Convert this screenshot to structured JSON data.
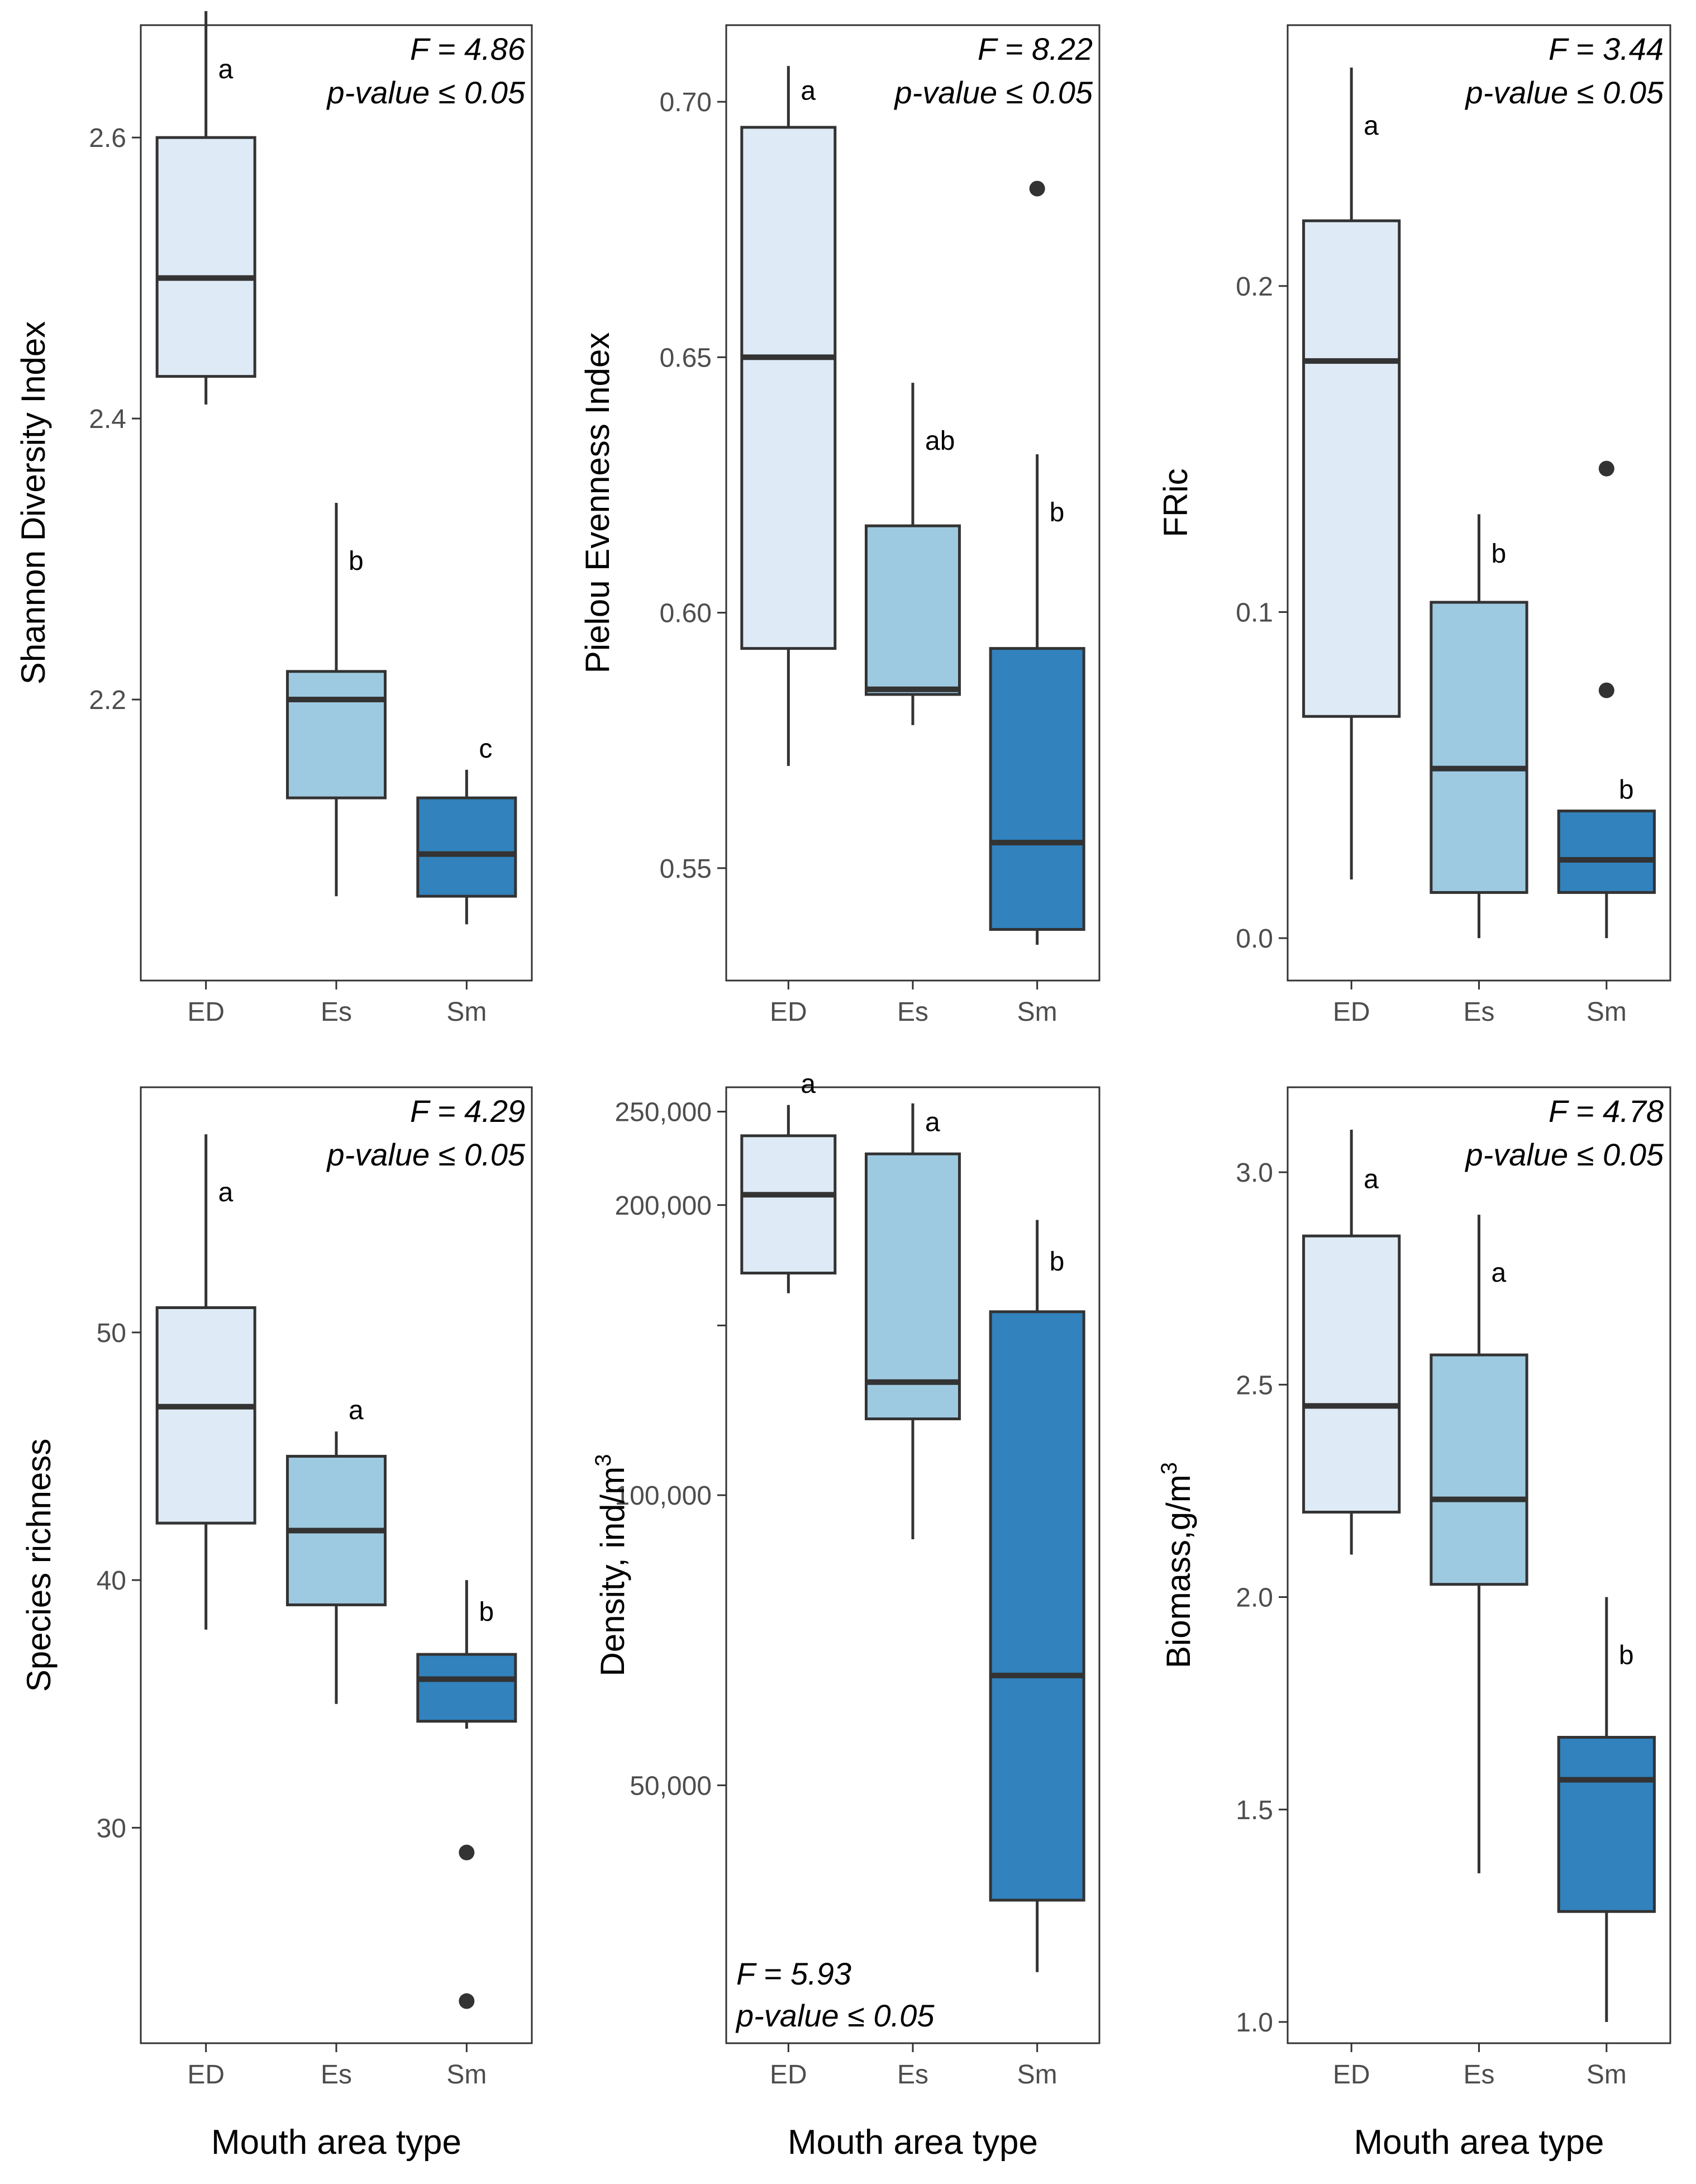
{
  "chart_data": [
    {
      "type": "box",
      "id": "shannon",
      "ylabel": "Shannon Diversity Index",
      "ylim": [
        2.0,
        2.68
      ],
      "yticks": [
        2.2,
        2.4,
        2.6
      ],
      "ytick_labels": [
        "2.2",
        "2.4",
        "2.6"
      ],
      "categories": [
        "ED",
        "Es",
        "Sm"
      ],
      "boxes": [
        {
          "min": 2.41,
          "q1": 2.43,
          "median": 2.5,
          "q3": 2.6,
          "max": 2.69,
          "outliers": [],
          "letter": "a"
        },
        {
          "min": 2.06,
          "q1": 2.13,
          "median": 2.2,
          "q3": 2.22,
          "max": 2.34,
          "outliers": [],
          "letter": "b"
        },
        {
          "min": 2.04,
          "q1": 2.06,
          "median": 2.09,
          "q3": 2.13,
          "max": 2.15,
          "outliers": [],
          "letter": "c"
        }
      ],
      "stat_f": "F = 4.86",
      "stat_p": "p-value ≤ 0.05",
      "stat_position": "top-right"
    },
    {
      "type": "box",
      "id": "pielou",
      "ylabel": "Pielou Evenness Index",
      "ylim": [
        0.528,
        0.715
      ],
      "yticks": [
        0.55,
        0.6,
        0.65,
        0.7
      ],
      "ytick_labels": [
        "0.55",
        "0.60",
        "0.65",
        "0.70"
      ],
      "categories": [
        "ED",
        "Es",
        "Sm"
      ],
      "boxes": [
        {
          "min": 0.57,
          "q1": 0.593,
          "median": 0.65,
          "q3": 0.695,
          "max": 0.707,
          "outliers": [],
          "letter": "a"
        },
        {
          "min": 0.578,
          "q1": 0.584,
          "median": 0.585,
          "q3": 0.617,
          "max": 0.645,
          "outliers": [],
          "letter": "ab"
        },
        {
          "min": 0.535,
          "q1": 0.538,
          "median": 0.555,
          "q3": 0.593,
          "max": 0.631,
          "outliers": [
            0.683
          ],
          "letter": "b"
        }
      ],
      "stat_f": "F = 8.22",
      "stat_p": "p-value ≤ 0.05",
      "stat_position": "top-right"
    },
    {
      "type": "box",
      "id": "fric",
      "ylabel": "FRic",
      "ylim": [
        -0.013,
        0.28
      ],
      "yticks": [
        0.0,
        0.1,
        0.2
      ],
      "ytick_labels": [
        "0.0",
        "0.1",
        "0.2"
      ],
      "categories": [
        "ED",
        "Es",
        "Sm"
      ],
      "boxes": [
        {
          "min": 0.018,
          "q1": 0.068,
          "median": 0.177,
          "q3": 0.22,
          "max": 0.267,
          "outliers": [],
          "letter": "a"
        },
        {
          "min": 0.0,
          "q1": 0.014,
          "median": 0.052,
          "q3": 0.103,
          "max": 0.13,
          "outliers": [],
          "letter": "b"
        },
        {
          "min": 0.0,
          "q1": 0.014,
          "median": 0.024,
          "q3": 0.039,
          "max": 0.039,
          "outliers": [
            0.076,
            0.144
          ],
          "letter": "b"
        }
      ],
      "stat_f": "F = 3.44",
      "stat_p": "p-value ≤ 0.05",
      "stat_position": "top-right"
    },
    {
      "type": "box",
      "id": "richness",
      "ylabel": "Species richness",
      "ylim": [
        21.3,
        59.9
      ],
      "yticks": [
        30,
        40,
        50
      ],
      "ytick_labels": [
        "30",
        "40",
        "50"
      ],
      "categories": [
        "ED",
        "Es",
        "Sm"
      ],
      "boxes": [
        {
          "min": 38,
          "q1": 42.3,
          "median": 47,
          "q3": 51,
          "max": 58,
          "outliers": [],
          "letter": "a"
        },
        {
          "min": 35,
          "q1": 39,
          "median": 42,
          "q3": 45,
          "max": 46,
          "outliers": [],
          "letter": "a"
        },
        {
          "min": 34,
          "q1": 34.3,
          "median": 36,
          "q3": 37,
          "max": 40,
          "outliers": [
            29,
            23
          ],
          "letter": "b"
        }
      ],
      "stat_f": "F = 4.29",
      "stat_p": "p-value ≤ 0.05",
      "stat_position": "top-right"
    },
    {
      "type": "box",
      "id": "density",
      "ylabel_main": "Density, ind/m",
      "ylabel_sup": "3",
      "scale": "log10",
      "ylim": [
        27000,
        265000
      ],
      "yticks": [
        50000,
        100000,
        150000,
        200000,
        250000
      ],
      "ytick_labels": [
        "50,000",
        "100,000",
        "",
        "200,000",
        "250,000"
      ],
      "categories": [
        "ED",
        "Es",
        "Sm"
      ],
      "boxes": [
        {
          "min": 162000,
          "q1": 170000,
          "median": 205000,
          "q3": 236000,
          "max": 254000,
          "outliers": [],
          "letter": "a"
        },
        {
          "min": 90000,
          "q1": 120000,
          "median": 131000,
          "q3": 226000,
          "max": 255000,
          "outliers": [],
          "letter": "a"
        },
        {
          "min": 32000,
          "q1": 38000,
          "median": 65000,
          "q3": 155000,
          "max": 193000,
          "outliers": [],
          "letter": "b"
        }
      ],
      "stat_f": "F = 5.93",
      "stat_p": "p-value ≤ 0.05",
      "stat_position": "bottom-left"
    },
    {
      "type": "box",
      "id": "biomass",
      "ylabel_main": "Biomass,g/m",
      "ylabel_sup": "3",
      "ylim": [
        0.95,
        3.2
      ],
      "yticks": [
        1.0,
        1.5,
        2.0,
        2.5,
        3.0
      ],
      "ytick_labels": [
        "1.0",
        "1.5",
        "2.0",
        "2.5",
        "3.0"
      ],
      "categories": [
        "ED",
        "Es",
        "Sm"
      ],
      "boxes": [
        {
          "min": 2.1,
          "q1": 2.2,
          "median": 2.45,
          "q3": 2.85,
          "max": 3.1,
          "outliers": [],
          "letter": "a"
        },
        {
          "min": 1.35,
          "q1": 2.03,
          "median": 2.23,
          "q3": 2.57,
          "max": 2.9,
          "outliers": [],
          "letter": "a"
        },
        {
          "min": 1.0,
          "q1": 1.26,
          "median": 1.57,
          "q3": 1.67,
          "max": 2.0,
          "outliers": [],
          "letter": "b"
        }
      ],
      "stat_f": "F = 4.78",
      "stat_p": "p-value ≤ 0.05",
      "stat_position": "top-right"
    }
  ],
  "xlabel": "Mouth area type",
  "colors": {
    "fill_1": "#deebf7",
    "fill_2": "#9ecae1",
    "fill_3": "#3182bd",
    "stroke": "#333333",
    "tick": "#4d4d4d"
  }
}
